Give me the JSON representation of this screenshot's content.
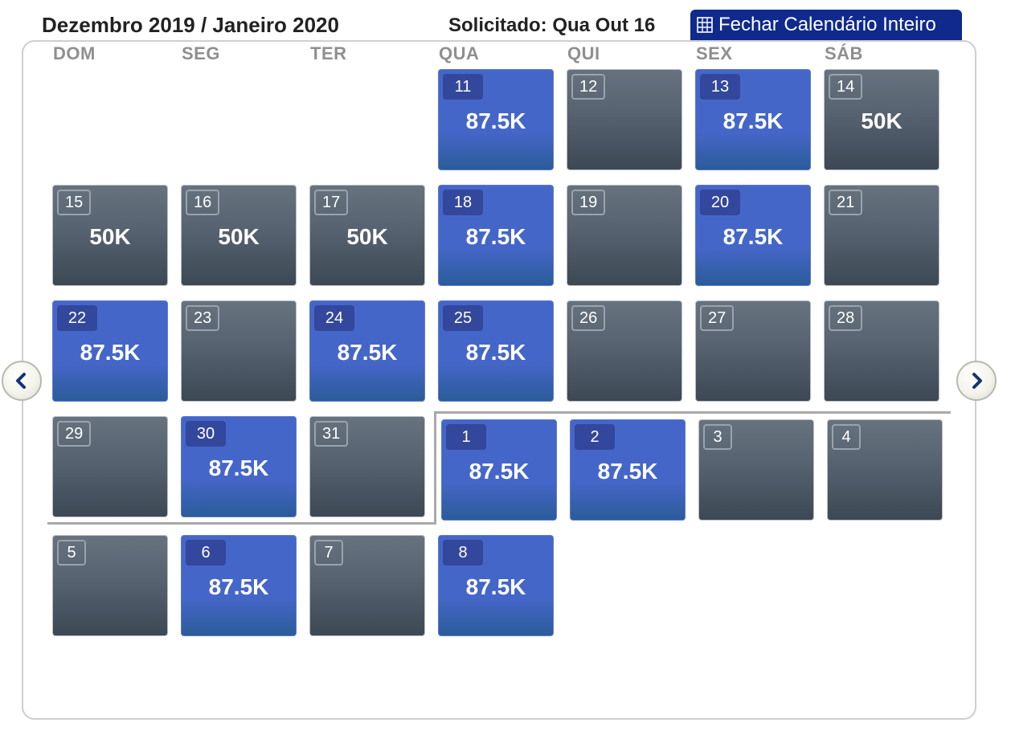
{
  "header": {
    "title": "Dezembro 2019 / Janeiro 2020",
    "requested": "Solicitado: Qua Out 16",
    "close_label": "Fechar Calendário Inteiro"
  },
  "weekdays": [
    "DOM",
    "SEG",
    "TER",
    "QUA",
    "QUI",
    "SEX",
    "SÁB"
  ],
  "weeks": [
    [
      null,
      null,
      null,
      {
        "day": "11",
        "price": "87.5K",
        "style": "blue"
      },
      {
        "day": "12",
        "price": "",
        "style": "gray"
      },
      {
        "day": "13",
        "price": "87.5K",
        "style": "blue"
      },
      {
        "day": "14",
        "price": "50K",
        "style": "gray"
      }
    ],
    [
      {
        "day": "15",
        "price": "50K",
        "style": "gray"
      },
      {
        "day": "16",
        "price": "50K",
        "style": "gray"
      },
      {
        "day": "17",
        "price": "50K",
        "style": "gray"
      },
      {
        "day": "18",
        "price": "87.5K",
        "style": "blue"
      },
      {
        "day": "19",
        "price": "",
        "style": "gray"
      },
      {
        "day": "20",
        "price": "87.5K",
        "style": "blue"
      },
      {
        "day": "21",
        "price": "",
        "style": "gray"
      }
    ],
    [
      {
        "day": "22",
        "price": "87.5K",
        "style": "blue"
      },
      {
        "day": "23",
        "price": "",
        "style": "gray"
      },
      {
        "day": "24",
        "price": "87.5K",
        "style": "blue"
      },
      {
        "day": "25",
        "price": "87.5K",
        "style": "blue"
      },
      {
        "day": "26",
        "price": "",
        "style": "gray"
      },
      {
        "day": "27",
        "price": "",
        "style": "gray"
      },
      {
        "day": "28",
        "price": "",
        "style": "gray"
      }
    ],
    [
      {
        "day": "29",
        "price": "",
        "style": "gray"
      },
      {
        "day": "30",
        "price": "87.5K",
        "style": "blue"
      },
      {
        "day": "31",
        "price": "",
        "style": "gray"
      },
      {
        "day": "1",
        "price": "87.5K",
        "style": "blue"
      },
      {
        "day": "2",
        "price": "87.5K",
        "style": "blue"
      },
      {
        "day": "3",
        "price": "",
        "style": "gray"
      },
      {
        "day": "4",
        "price": "",
        "style": "gray"
      }
    ],
    [
      {
        "day": "5",
        "price": "",
        "style": "gray"
      },
      {
        "day": "6",
        "price": "87.5K",
        "style": "blue"
      },
      {
        "day": "7",
        "price": "",
        "style": "gray"
      },
      {
        "day": "8",
        "price": "87.5K",
        "style": "blue"
      },
      null,
      null,
      null
    ]
  ],
  "colors": {
    "available": "#4566c9",
    "unavailable": "#56626f",
    "header_button": "#0f2a8c"
  },
  "icons": {
    "close_button": "grid-icon",
    "prev": "chevron-left-icon",
    "next": "chevron-right-icon"
  }
}
